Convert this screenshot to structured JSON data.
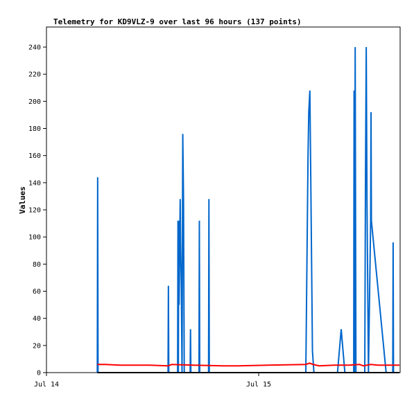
{
  "chart_data": {
    "type": "line",
    "title": "Telemetry for KD9VLZ-9 over last 96 hours (137 points)",
    "xlabel": "",
    "ylabel": "Values",
    "x_unit": "hours",
    "x_range": [
      0,
      48
    ],
    "ylim": [
      0,
      255
    ],
    "y_ticks": [
      0,
      20,
      40,
      60,
      80,
      100,
      120,
      140,
      160,
      180,
      200,
      220,
      240
    ],
    "x_ticks": [
      {
        "x": 0,
        "label": "Jul 14"
      },
      {
        "x": 28.8,
        "label": "Jul 15"
      }
    ],
    "grid": false,
    "legend": "none",
    "series": [
      {
        "color": "#0066cc",
        "points": [
          [
            6.9,
            0
          ],
          [
            6.95,
            144
          ],
          [
            7.0,
            0
          ],
          [
            16.5,
            0
          ],
          [
            16.55,
            64
          ],
          [
            16.6,
            0
          ],
          [
            17.8,
            0
          ],
          [
            17.85,
            112
          ],
          [
            17.9,
            0
          ],
          [
            17.95,
            112
          ],
          [
            18.0,
            50
          ],
          [
            18.15,
            128
          ],
          [
            18.2,
            96
          ],
          [
            18.3,
            64
          ],
          [
            18.4,
            0
          ],
          [
            18.5,
            176
          ],
          [
            18.6,
            128
          ],
          [
            18.7,
            0
          ],
          [
            19.5,
            0
          ],
          [
            19.55,
            32
          ],
          [
            19.6,
            0
          ],
          [
            20.7,
            0
          ],
          [
            20.75,
            112
          ],
          [
            20.8,
            0
          ],
          [
            22.0,
            0
          ],
          [
            22.05,
            128
          ],
          [
            22.1,
            0
          ],
          [
            35.2,
            0
          ],
          [
            35.35,
            80
          ],
          [
            35.5,
            160
          ],
          [
            35.6,
            192
          ],
          [
            35.75,
            208
          ],
          [
            35.9,
            128
          ],
          [
            36.1,
            16
          ],
          [
            36.3,
            0
          ],
          [
            36.5,
            0
          ],
          [
            39.5,
            0
          ],
          [
            40.0,
            32
          ],
          [
            40.5,
            0
          ],
          [
            41.0,
            0
          ],
          [
            41.7,
            0
          ],
          [
            41.75,
            208
          ],
          [
            41.8,
            0
          ],
          [
            41.9,
            240
          ],
          [
            42.0,
            0
          ],
          [
            43.2,
            0
          ],
          [
            43.3,
            144
          ],
          [
            43.4,
            240
          ],
          [
            43.5,
            128
          ],
          [
            43.7,
            0
          ],
          [
            44.0,
            112
          ],
          [
            44.05,
            192
          ],
          [
            44.1,
            112
          ],
          [
            46.1,
            0
          ],
          [
            47.0,
            0
          ],
          [
            47.05,
            96
          ],
          [
            47.1,
            0
          ]
        ]
      },
      {
        "color": "#ff0000",
        "points": [
          [
            6.9,
            6
          ],
          [
            8.0,
            6
          ],
          [
            10.0,
            5.5
          ],
          [
            14.0,
            5.5
          ],
          [
            16.5,
            5
          ],
          [
            17.0,
            6
          ],
          [
            20.0,
            5.5
          ],
          [
            24.0,
            5
          ],
          [
            26.0,
            5
          ],
          [
            30.0,
            5.5
          ],
          [
            35.2,
            6
          ],
          [
            35.7,
            7
          ],
          [
            36.2,
            6
          ],
          [
            37.0,
            5
          ],
          [
            39.0,
            5.5
          ],
          [
            41.0,
            5.5
          ],
          [
            42.5,
            6
          ],
          [
            43.0,
            5
          ],
          [
            44.0,
            6
          ],
          [
            45.0,
            5.5
          ],
          [
            47.9,
            5.5
          ]
        ]
      },
      {
        "color": "#000000",
        "points": [
          [
            6.9,
            0
          ],
          [
            47.9,
            0
          ]
        ]
      }
    ]
  }
}
